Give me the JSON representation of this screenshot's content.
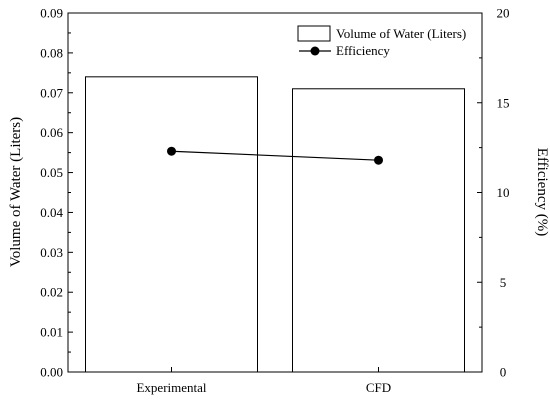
{
  "chart_data": {
    "type": "bar",
    "categories": [
      "Experimental",
      "CFD"
    ],
    "series": [
      {
        "name": "Volume of Water (Liters)",
        "type": "bar",
        "axis": "left",
        "values": [
          0.074,
          0.071
        ]
      },
      {
        "name": "Efficiency",
        "type": "line",
        "axis": "right",
        "values": [
          12.3,
          11.8
        ]
      }
    ],
    "ylabel": "Volume of Water (Liters)",
    "ylim": [
      0,
      0.09
    ],
    "yticks": [
      "0.00",
      "0.01",
      "0.02",
      "0.03",
      "0.04",
      "0.05",
      "0.06",
      "0.07",
      "0.08",
      "0.09"
    ],
    "y2label": "Efficiency (%)",
    "y2lim": [
      0,
      20
    ],
    "y2ticks": [
      "0",
      "5",
      "10",
      "15",
      "20"
    ],
    "legend_position": "top-right",
    "grid": false,
    "colors": {
      "bar_fill": "#ffffff",
      "stroke": "#000000",
      "line": "#000000"
    }
  }
}
